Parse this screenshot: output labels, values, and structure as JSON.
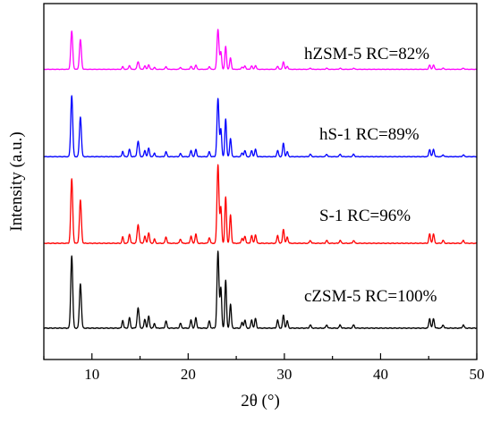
{
  "chart_data": {
    "type": "line",
    "title": "",
    "xlabel": "2θ (°)",
    "ylabel": "Intensity (a.u.)",
    "xlim": [
      5,
      50
    ],
    "xticks": [
      10,
      20,
      30,
      40,
      50
    ],
    "yticks_shown": false,
    "legend": "none",
    "grid": false,
    "series": [
      {
        "name": "hZSM-5 RC=82%",
        "color": "#ff00ff",
        "baseline": 3.0,
        "scale": 0.82,
        "peaks": [
          [
            7.9,
            1.0,
            0.12
          ],
          [
            8.8,
            0.78,
            0.12
          ],
          [
            13.2,
            0.07,
            0.09
          ],
          [
            13.9,
            0.1,
            0.1
          ],
          [
            14.8,
            0.2,
            0.12
          ],
          [
            15.5,
            0.09,
            0.1
          ],
          [
            15.9,
            0.12,
            0.1
          ],
          [
            16.5,
            0.05,
            0.09
          ],
          [
            17.7,
            0.07,
            0.1
          ],
          [
            19.2,
            0.05,
            0.1
          ],
          [
            20.3,
            0.08,
            0.1
          ],
          [
            20.8,
            0.11,
            0.1
          ],
          [
            22.2,
            0.07,
            0.1
          ],
          [
            23.1,
            1.05,
            0.12
          ],
          [
            23.4,
            0.45,
            0.1
          ],
          [
            23.9,
            0.6,
            0.1
          ],
          [
            24.4,
            0.3,
            0.1
          ],
          [
            25.6,
            0.06,
            0.1
          ],
          [
            25.9,
            0.09,
            0.1
          ],
          [
            26.6,
            0.09,
            0.1
          ],
          [
            27.0,
            0.1,
            0.1
          ],
          [
            29.3,
            0.08,
            0.1
          ],
          [
            29.9,
            0.2,
            0.1
          ],
          [
            30.3,
            0.08,
            0.1
          ],
          [
            32.7,
            0.03,
            0.1
          ],
          [
            34.4,
            0.03,
            0.1
          ],
          [
            35.8,
            0.03,
            0.1
          ],
          [
            37.2,
            0.03,
            0.1
          ],
          [
            45.1,
            0.11,
            0.1
          ],
          [
            45.5,
            0.11,
            0.1
          ],
          [
            46.5,
            0.03,
            0.1
          ],
          [
            48.6,
            0.03,
            0.1
          ]
        ]
      },
      {
        "name": "hS-1 RC=89%",
        "color": "#0000ff",
        "baseline": 2.0,
        "scale": 0.9,
        "peaks": [
          [
            7.9,
            1.0,
            0.12
          ],
          [
            8.8,
            0.65,
            0.12
          ],
          [
            13.2,
            0.09,
            0.09
          ],
          [
            13.9,
            0.12,
            0.1
          ],
          [
            14.8,
            0.25,
            0.12
          ],
          [
            15.5,
            0.1,
            0.1
          ],
          [
            15.9,
            0.14,
            0.1
          ],
          [
            16.5,
            0.06,
            0.09
          ],
          [
            17.7,
            0.08,
            0.1
          ],
          [
            19.2,
            0.05,
            0.1
          ],
          [
            20.3,
            0.1,
            0.1
          ],
          [
            20.8,
            0.12,
            0.1
          ],
          [
            22.2,
            0.08,
            0.1
          ],
          [
            23.1,
            0.95,
            0.12
          ],
          [
            23.4,
            0.45,
            0.1
          ],
          [
            23.9,
            0.62,
            0.1
          ],
          [
            24.4,
            0.3,
            0.1
          ],
          [
            25.6,
            0.06,
            0.1
          ],
          [
            25.9,
            0.1,
            0.1
          ],
          [
            26.6,
            0.1,
            0.1
          ],
          [
            27.0,
            0.12,
            0.1
          ],
          [
            29.3,
            0.1,
            0.1
          ],
          [
            29.9,
            0.22,
            0.1
          ],
          [
            30.3,
            0.08,
            0.1
          ],
          [
            32.7,
            0.04,
            0.1
          ],
          [
            34.4,
            0.04,
            0.1
          ],
          [
            35.8,
            0.04,
            0.1
          ],
          [
            37.2,
            0.04,
            0.1
          ],
          [
            45.1,
            0.12,
            0.1
          ],
          [
            45.5,
            0.12,
            0.1
          ],
          [
            46.5,
            0.03,
            0.1
          ],
          [
            48.6,
            0.03,
            0.1
          ]
        ]
      },
      {
        "name": "S-1 RC=96%",
        "color": "#ff0000",
        "baseline": 1.0,
        "scale": 1.0,
        "peaks": [
          [
            7.9,
            0.9,
            0.12
          ],
          [
            8.8,
            0.6,
            0.12
          ],
          [
            13.2,
            0.09,
            0.09
          ],
          [
            13.9,
            0.13,
            0.1
          ],
          [
            14.8,
            0.26,
            0.12
          ],
          [
            15.5,
            0.1,
            0.1
          ],
          [
            15.9,
            0.15,
            0.1
          ],
          [
            16.5,
            0.06,
            0.09
          ],
          [
            17.7,
            0.09,
            0.1
          ],
          [
            19.2,
            0.06,
            0.1
          ],
          [
            20.3,
            0.1,
            0.1
          ],
          [
            20.8,
            0.13,
            0.1
          ],
          [
            22.2,
            0.08,
            0.1
          ],
          [
            23.1,
            1.1,
            0.12
          ],
          [
            23.4,
            0.5,
            0.1
          ],
          [
            23.9,
            0.65,
            0.1
          ],
          [
            24.4,
            0.4,
            0.1
          ],
          [
            25.6,
            0.07,
            0.1
          ],
          [
            25.9,
            0.1,
            0.1
          ],
          [
            26.6,
            0.11,
            0.1
          ],
          [
            27.0,
            0.12,
            0.1
          ],
          [
            29.3,
            0.11,
            0.1
          ],
          [
            29.9,
            0.2,
            0.1
          ],
          [
            30.3,
            0.09,
            0.1
          ],
          [
            32.7,
            0.04,
            0.1
          ],
          [
            34.4,
            0.04,
            0.1
          ],
          [
            35.8,
            0.04,
            0.1
          ],
          [
            37.2,
            0.04,
            0.1
          ],
          [
            45.1,
            0.13,
            0.1
          ],
          [
            45.5,
            0.13,
            0.1
          ],
          [
            46.5,
            0.04,
            0.1
          ],
          [
            48.6,
            0.04,
            0.1
          ]
        ]
      },
      {
        "name": "cZSM-5 RC=100%",
        "color": "#000000",
        "baseline": 0.0,
        "scale": 1.0,
        "peaks": [
          [
            7.9,
            0.9,
            0.12
          ],
          [
            8.8,
            0.55,
            0.12
          ],
          [
            13.2,
            0.1,
            0.09
          ],
          [
            13.9,
            0.13,
            0.1
          ],
          [
            14.8,
            0.25,
            0.12
          ],
          [
            15.5,
            0.11,
            0.1
          ],
          [
            15.9,
            0.15,
            0.1
          ],
          [
            16.5,
            0.06,
            0.09
          ],
          [
            17.7,
            0.09,
            0.1
          ],
          [
            19.2,
            0.06,
            0.1
          ],
          [
            20.3,
            0.1,
            0.1
          ],
          [
            20.8,
            0.13,
            0.1
          ],
          [
            22.2,
            0.09,
            0.1
          ],
          [
            23.1,
            0.95,
            0.12
          ],
          [
            23.4,
            0.5,
            0.1
          ],
          [
            23.9,
            0.6,
            0.1
          ],
          [
            24.4,
            0.3,
            0.1
          ],
          [
            25.6,
            0.07,
            0.1
          ],
          [
            25.9,
            0.1,
            0.1
          ],
          [
            26.6,
            0.1,
            0.1
          ],
          [
            27.0,
            0.12,
            0.1
          ],
          [
            29.3,
            0.1,
            0.1
          ],
          [
            29.9,
            0.16,
            0.1
          ],
          [
            30.3,
            0.09,
            0.1
          ],
          [
            32.7,
            0.04,
            0.1
          ],
          [
            34.4,
            0.04,
            0.1
          ],
          [
            35.8,
            0.04,
            0.1
          ],
          [
            37.2,
            0.04,
            0.1
          ],
          [
            45.1,
            0.12,
            0.1
          ],
          [
            45.5,
            0.12,
            0.1
          ],
          [
            46.5,
            0.04,
            0.1
          ],
          [
            48.6,
            0.04,
            0.1
          ]
        ]
      }
    ]
  }
}
